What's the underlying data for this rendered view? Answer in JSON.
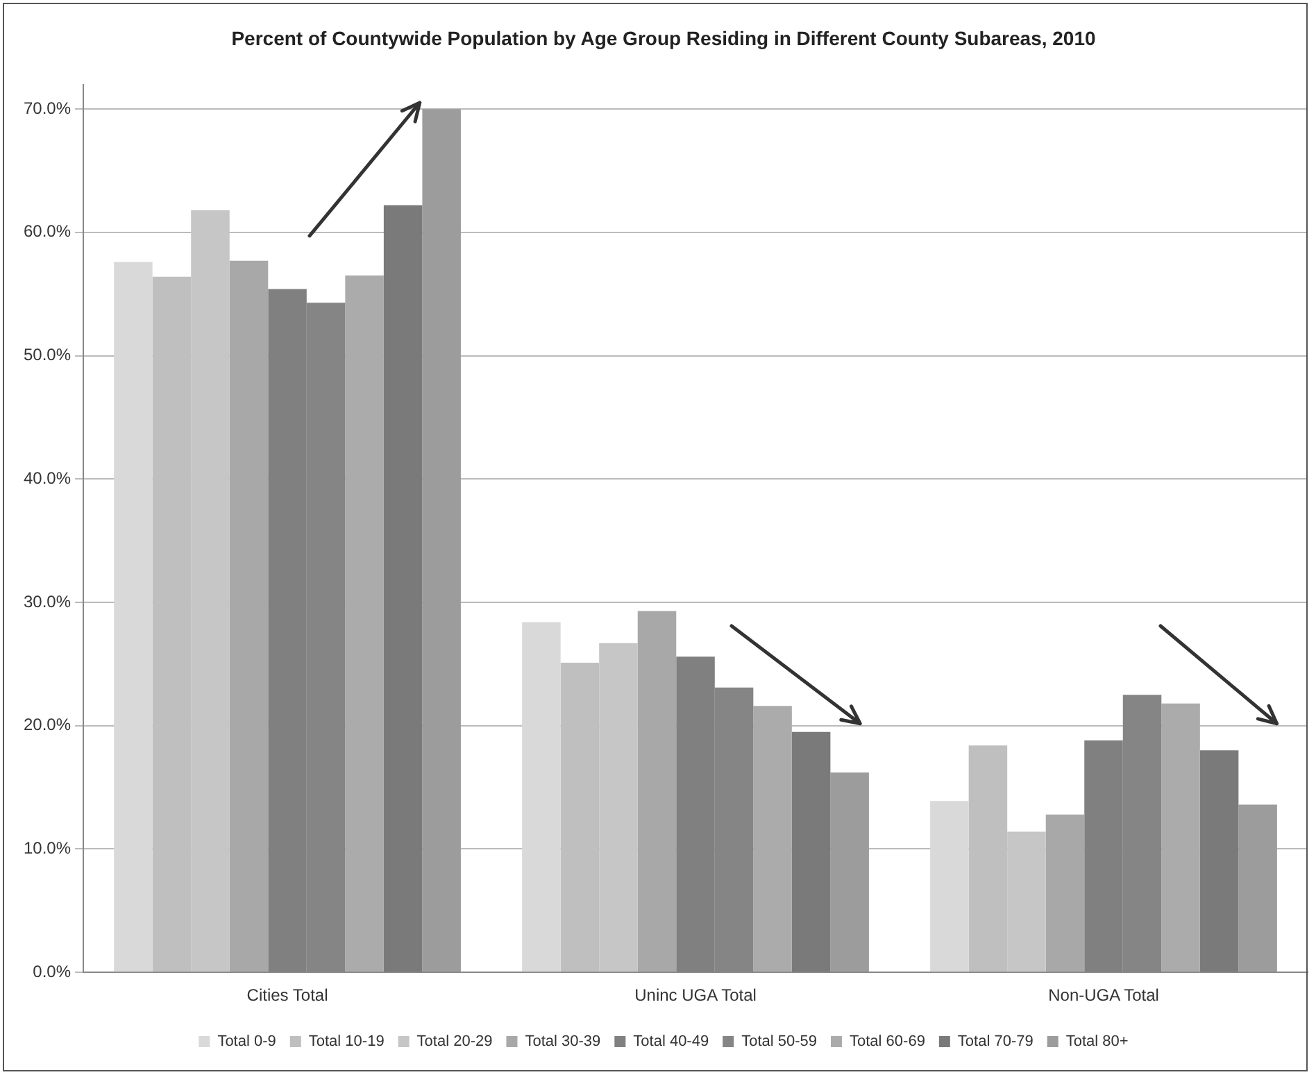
{
  "chart_data": {
    "type": "bar",
    "title": "Percent of Countywide Population by Age Group Residing in Different County Subareas, 2010",
    "categories": [
      "Cities Total",
      "Uninc UGA Total",
      "Non-UGA Total"
    ],
    "series": [
      {
        "name": "Total 0-9",
        "color": "#d9d9d9",
        "values": [
          57.6,
          28.4,
          13.9
        ]
      },
      {
        "name": "Total 10-19",
        "color": "#bfbfbf",
        "values": [
          56.4,
          25.1,
          18.4
        ]
      },
      {
        "name": "Total 20-29",
        "color": "#c6c6c6",
        "values": [
          61.8,
          26.7,
          11.4
        ]
      },
      {
        "name": "Total 30-39",
        "color": "#a8a8a8",
        "values": [
          57.7,
          29.3,
          12.8
        ]
      },
      {
        "name": "Total 40-49",
        "color": "#808080",
        "values": [
          55.4,
          25.6,
          18.8
        ]
      },
      {
        "name": "Total 50-59",
        "color": "#858585",
        "values": [
          54.3,
          23.1,
          22.5
        ]
      },
      {
        "name": "Total 60-69",
        "color": "#ababab",
        "values": [
          56.5,
          21.6,
          21.8
        ]
      },
      {
        "name": "Total 70-79",
        "color": "#7a7a7a",
        "values": [
          62.2,
          19.5,
          18.0
        ]
      },
      {
        "name": "Total 80+",
        "color": "#9c9c9c",
        "values": [
          70.0,
          16.2,
          13.6
        ]
      }
    ],
    "ylim": [
      0,
      72
    ],
    "yticks": [
      {
        "value": 0,
        "label": "0.0%"
      },
      {
        "value": 10,
        "label": "10.0%"
      },
      {
        "value": 20,
        "label": "20.0%"
      },
      {
        "value": 30,
        "label": "30.0%"
      },
      {
        "value": 40,
        "label": "40.0%"
      },
      {
        "value": 50,
        "label": "50.0%"
      },
      {
        "value": 60,
        "label": "60.0%"
      },
      {
        "value": 70,
        "label": "70.0%"
      }
    ],
    "grid": "y",
    "legend": "bottom"
  }
}
